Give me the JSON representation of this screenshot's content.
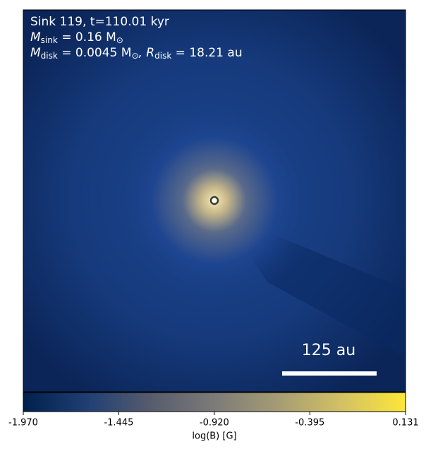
{
  "chart_data": {
    "type": "heatmap",
    "annotations": [
      [
        {
          "text": "Sink 119, t=110.01 kyr",
          "sub": false
        }
      ],
      [
        {
          "text": "M",
          "sub": false
        },
        {
          "text": "sink",
          "sub": true
        },
        {
          "text": " = 0.16 M",
          "sub": false
        },
        {
          "text": "⊙",
          "sub": true
        }
      ],
      [
        {
          "text": "M",
          "sub": false
        },
        {
          "text": "disk",
          "sub": true
        },
        {
          "text": " = 0.0045 M",
          "sub": false
        },
        {
          "text": "⊙",
          "sub": true
        },
        {
          "text": ", R",
          "sub": false
        },
        {
          "text": "disk",
          "sub": true
        },
        {
          "text": " = 18.21 au",
          "sub": false
        }
      ]
    ],
    "scale_bar_label": "125 au",
    "colorbar": {
      "label": "log(B) [G]",
      "lim": [
        -1.97,
        0.131
      ],
      "ticks": [
        {
          "value": -1.97,
          "label": "-1.970"
        },
        -1.445,
        {
          "value": -0.92,
          "label": "-0.920"
        },
        -0.395,
        0.131
      ],
      "colors": [
        "#00204c",
        "#1f3f74",
        "#575c6d",
        "#7c7b78",
        "#a59c74",
        "#d3c164",
        "#fde737"
      ]
    }
  }
}
